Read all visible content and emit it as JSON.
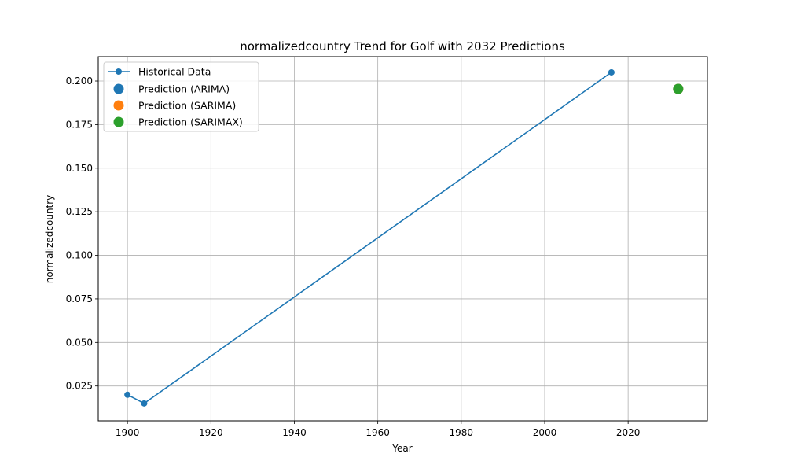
{
  "chart_data": {
    "type": "line",
    "title": "normalizedcountry Trend for Golf with 2032 Predictions",
    "xlabel": "Year",
    "ylabel": "normalizedcountry",
    "xlim": [
      1893,
      2039
    ],
    "ylim": [
      0.005,
      0.214
    ],
    "xticks": [
      1900,
      1920,
      1940,
      1960,
      1980,
      2000,
      2020
    ],
    "yticks": [
      0.025,
      0.05,
      0.075,
      0.1,
      0.125,
      0.15,
      0.175,
      0.2
    ],
    "ytick_labels": [
      "0.025",
      "0.050",
      "0.075",
      "0.100",
      "0.125",
      "0.150",
      "0.175",
      "0.200"
    ],
    "grid": true,
    "legend_position": "top-left",
    "series": [
      {
        "name": "Historical Data",
        "kind": "line-markers",
        "color": "#1f77b4",
        "points": [
          {
            "x": 1900,
            "y": 0.02
          },
          {
            "x": 1904,
            "y": 0.015
          },
          {
            "x": 2016,
            "y": 0.205
          }
        ]
      },
      {
        "name": "Prediction (ARIMA)",
        "kind": "point",
        "color": "#1f77b4",
        "points": [
          {
            "x": 2032,
            "y": 0.1955
          }
        ]
      },
      {
        "name": "Prediction (SARIMA)",
        "kind": "point",
        "color": "#ff7f0e",
        "points": [
          {
            "x": 2032,
            "y": 0.1955
          }
        ]
      },
      {
        "name": "Prediction (SARIMAX)",
        "kind": "point",
        "color": "#2ca02c",
        "points": [
          {
            "x": 2032,
            "y": 0.1955
          }
        ]
      }
    ]
  }
}
